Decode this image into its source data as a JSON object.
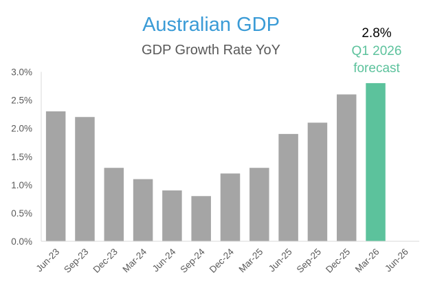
{
  "chart_data": {
    "type": "bar",
    "title": "Australian GDP",
    "subtitle": "GDP Growth Rate YoY",
    "xlabel": "",
    "ylabel": "",
    "categories": [
      "Jun-23",
      "Sep-23",
      "Dec-23",
      "Mar-24",
      "Jun-24",
      "Sep-24",
      "Dec-24",
      "Mar-25",
      "Jun-25",
      "Sep-25",
      "Dec-25",
      "Mar-26",
      "Jun-26"
    ],
    "values": [
      2.3,
      2.2,
      1.3,
      1.1,
      0.9,
      0.8,
      1.2,
      1.3,
      1.9,
      2.1,
      2.6,
      2.8,
      null
    ],
    "highlight_index": 11,
    "ylim": [
      0,
      3.0
    ],
    "yticks": [
      "0.0%",
      "0.5%",
      "1.0%",
      "1.5%",
      "2.0%",
      "2.5%",
      "3.0%"
    ],
    "grid": false,
    "colors": {
      "bar": "#a5a5a5",
      "highlight": "#5cc29c",
      "title": "#3a9bd6"
    },
    "annotation": {
      "value": "2.8%",
      "line1": "Q1 2026",
      "line2": "forecast"
    }
  }
}
